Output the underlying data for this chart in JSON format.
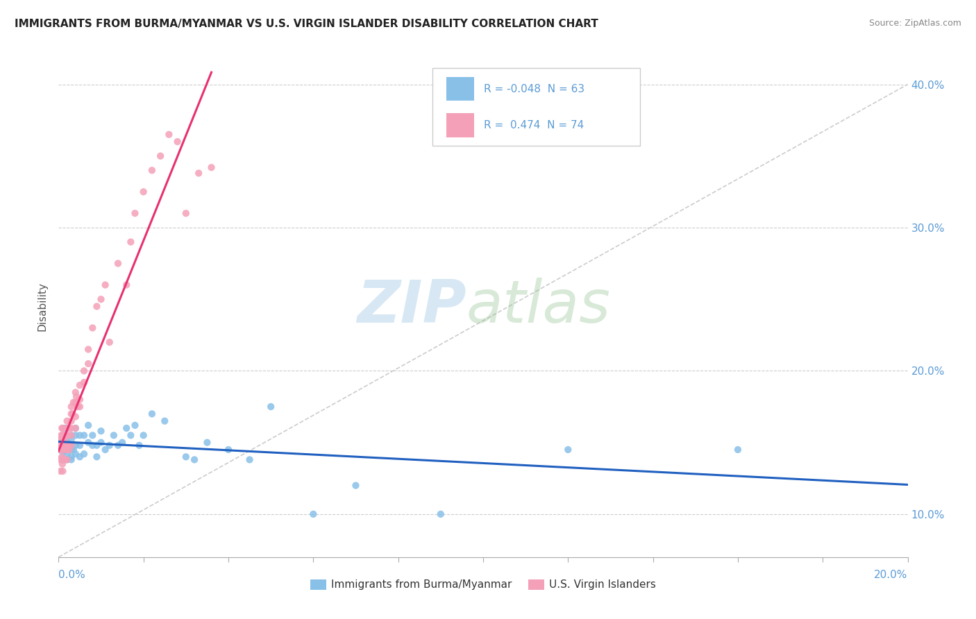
{
  "title": "IMMIGRANTS FROM BURMA/MYANMAR VS U.S. VIRGIN ISLANDER DISABILITY CORRELATION CHART",
  "source": "Source: ZipAtlas.com",
  "ylabel": "Disability",
  "xlim": [
    0.0,
    0.2
  ],
  "ylim": [
    0.07,
    0.42
  ],
  "yticks": [
    0.1,
    0.2,
    0.3,
    0.4
  ],
  "ytick_labels": [
    "10.0%",
    "20.0%",
    "30.0%",
    "40.0%"
  ],
  "legend_r1": "-0.048",
  "legend_n1": "63",
  "legend_r2": "0.474",
  "legend_n2": "74",
  "blue_color": "#88c0e8",
  "pink_color": "#f4a0b8",
  "blue_line_color": "#2060c0",
  "pink_line_color": "#e83070",
  "tick_color": "#5b9bd5",
  "grid_color": "#cccccc",
  "blue_scatter_x": [
    0.0005,
    0.0008,
    0.001,
    0.001,
    0.001,
    0.001,
    0.0015,
    0.0015,
    0.002,
    0.002,
    0.002,
    0.002,
    0.002,
    0.002,
    0.002,
    0.0025,
    0.003,
    0.003,
    0.003,
    0.003,
    0.003,
    0.003,
    0.0035,
    0.004,
    0.004,
    0.004,
    0.004,
    0.005,
    0.005,
    0.005,
    0.006,
    0.006,
    0.007,
    0.007,
    0.008,
    0.008,
    0.009,
    0.009,
    0.01,
    0.01,
    0.011,
    0.012,
    0.013,
    0.014,
    0.015,
    0.016,
    0.017,
    0.018,
    0.019,
    0.02,
    0.022,
    0.025,
    0.03,
    0.032,
    0.035,
    0.04,
    0.045,
    0.05,
    0.06,
    0.07,
    0.09,
    0.12,
    0.16
  ],
  "blue_scatter_y": [
    0.15,
    0.148,
    0.155,
    0.143,
    0.138,
    0.152,
    0.145,
    0.16,
    0.15,
    0.155,
    0.148,
    0.142,
    0.138,
    0.155,
    0.16,
    0.148,
    0.152,
    0.145,
    0.14,
    0.155,
    0.148,
    0.138,
    0.145,
    0.155,
    0.148,
    0.16,
    0.142,
    0.155,
    0.148,
    0.14,
    0.155,
    0.142,
    0.15,
    0.162,
    0.148,
    0.155,
    0.148,
    0.14,
    0.15,
    0.158,
    0.145,
    0.148,
    0.155,
    0.148,
    0.15,
    0.16,
    0.155,
    0.162,
    0.148,
    0.155,
    0.17,
    0.165,
    0.14,
    0.138,
    0.15,
    0.145,
    0.138,
    0.175,
    0.1,
    0.12,
    0.1,
    0.145,
    0.145
  ],
  "pink_scatter_x": [
    0.0002,
    0.0003,
    0.0004,
    0.0005,
    0.0005,
    0.0006,
    0.0007,
    0.0008,
    0.0008,
    0.0009,
    0.001,
    0.001,
    0.001,
    0.001,
    0.001,
    0.001,
    0.001,
    0.0012,
    0.0013,
    0.0014,
    0.0015,
    0.0015,
    0.0016,
    0.0017,
    0.0018,
    0.0018,
    0.002,
    0.002,
    0.002,
    0.002,
    0.002,
    0.002,
    0.0022,
    0.0023,
    0.0025,
    0.0025,
    0.003,
    0.003,
    0.003,
    0.003,
    0.003,
    0.003,
    0.0033,
    0.0035,
    0.004,
    0.004,
    0.004,
    0.004,
    0.0042,
    0.0045,
    0.005,
    0.005,
    0.005,
    0.006,
    0.006,
    0.007,
    0.007,
    0.008,
    0.009,
    0.01,
    0.011,
    0.012,
    0.014,
    0.016,
    0.017,
    0.018,
    0.02,
    0.022,
    0.024,
    0.026,
    0.028,
    0.03,
    0.033,
    0.036
  ],
  "pink_scatter_y": [
    0.145,
    0.148,
    0.138,
    0.152,
    0.13,
    0.155,
    0.148,
    0.14,
    0.16,
    0.135,
    0.145,
    0.15,
    0.138,
    0.155,
    0.148,
    0.16,
    0.13,
    0.152,
    0.148,
    0.155,
    0.145,
    0.138,
    0.15,
    0.145,
    0.155,
    0.148,
    0.148,
    0.155,
    0.16,
    0.145,
    0.138,
    0.165,
    0.155,
    0.148,
    0.16,
    0.145,
    0.165,
    0.155,
    0.17,
    0.148,
    0.175,
    0.16,
    0.17,
    0.178,
    0.178,
    0.185,
    0.168,
    0.16,
    0.182,
    0.175,
    0.19,
    0.18,
    0.175,
    0.2,
    0.192,
    0.215,
    0.205,
    0.23,
    0.245,
    0.25,
    0.26,
    0.22,
    0.275,
    0.26,
    0.29,
    0.31,
    0.325,
    0.34,
    0.35,
    0.365,
    0.36,
    0.31,
    0.338,
    0.342
  ]
}
